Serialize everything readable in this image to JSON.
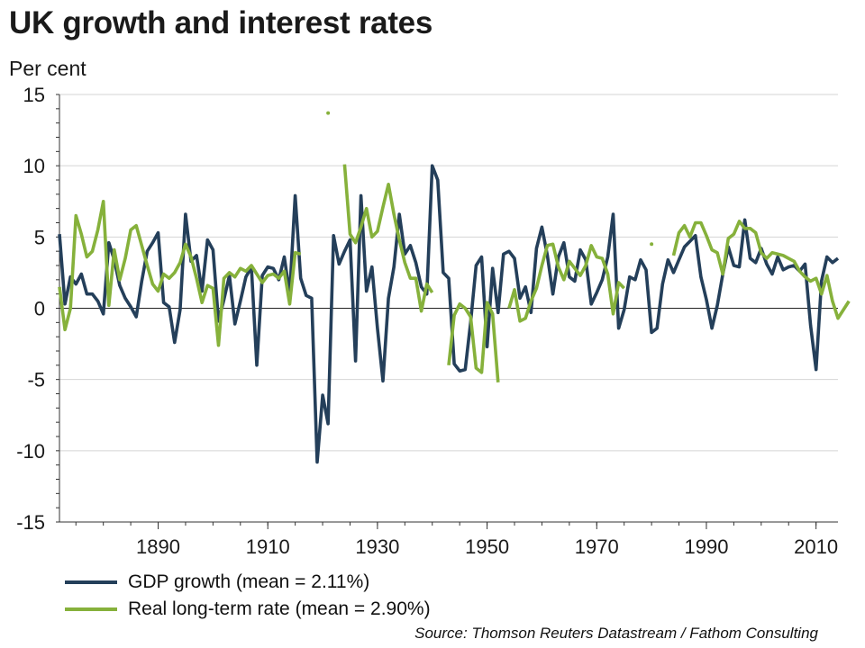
{
  "title": "UK growth and interest rates",
  "unit_label": "Per cent",
  "source": "Source: Thomson Reuters Datastream / Fathom Consulting",
  "colors": {
    "gdp": "#243f5a",
    "real_rate": "#86b13b",
    "grid": "#d4d4d4",
    "zero": "#222222"
  },
  "chart_data": {
    "type": "line",
    "title": "UK growth and interest rates",
    "ylabel": "Per cent",
    "xlabel": "",
    "xlim": [
      1872,
      2014
    ],
    "ylim": [
      -15,
      15
    ],
    "x_ticks": [
      1890,
      1910,
      1930,
      1950,
      1970,
      1990,
      2010
    ],
    "y_ticks": [
      -15,
      -10,
      -5,
      0,
      5,
      10,
      15
    ],
    "grid": true,
    "legend_position": "bottom-left",
    "series": [
      {
        "name": "GDP growth (mean = 2.11%)",
        "color": "#243f5a",
        "start_year": 1872,
        "values": [
          5.2,
          0.3,
          2.2,
          1.7,
          2.4,
          1.0,
          1.0,
          0.5,
          -0.4,
          4.6,
          3.4,
          1.6,
          0.7,
          0.1,
          -0.6,
          1.9,
          4.0,
          4.6,
          5.3,
          0.4,
          0.1,
          -2.4,
          -0.1,
          6.6,
          3.3,
          3.7,
          1.2,
          4.8,
          4.1,
          -0.9,
          0.6,
          2.3,
          -1.1,
          0.5,
          2.2,
          2.9,
          -4.0,
          2.3,
          2.9,
          2.8,
          2.0,
          3.6,
          1.0,
          7.9,
          2.1,
          0.9,
          0.7,
          -10.8,
          -6.1,
          -8.1,
          5.1,
          3.1,
          4.0,
          4.8,
          -3.7,
          7.9,
          1.2,
          2.9,
          -1.4,
          -5.1,
          0.7,
          2.9,
          6.6,
          3.8,
          4.4,
          3.2,
          1.5,
          1.0,
          10.0,
          9.0,
          2.5,
          2.1,
          -3.9,
          -4.4,
          -4.3,
          -1.0,
          3.0,
          3.6,
          -2.7,
          2.8,
          -0.3,
          3.8,
          4.0,
          3.5,
          0.7,
          1.5,
          -0.3,
          4.2,
          5.7,
          3.7,
          1.0,
          3.6,
          4.6,
          2.2,
          1.9,
          4.1,
          3.4,
          0.3,
          1.1,
          2.0,
          3.6,
          6.6,
          -1.4,
          -0.1,
          2.2,
          2.0,
          3.4,
          2.7,
          -1.7,
          -1.4,
          1.7,
          3.4,
          2.5,
          3.4,
          4.3,
          4.7,
          5.1,
          2.2,
          0.6,
          -1.4,
          0.2,
          2.4,
          4.3,
          3.0,
          2.9,
          6.2,
          3.5,
          3.2,
          4.2,
          3.1,
          2.4,
          3.6,
          2.7,
          2.9,
          3.0,
          2.6,
          3.1,
          -1.2,
          -4.3,
          1.9,
          3.6,
          3.2,
          3.5
        ]
      },
      {
        "name": "Real long-term rate (mean = 2.90%)",
        "color": "#86b13b",
        "start_year": 1872,
        "values": [
          1.5,
          -1.5,
          0.0,
          6.5,
          5.2,
          3.6,
          4.0,
          5.5,
          7.5,
          0.2,
          4.1,
          2.0,
          3.5,
          5.5,
          5.8,
          4.4,
          3.0,
          1.7,
          1.2,
          2.4,
          2.1,
          2.5,
          3.2,
          4.5,
          3.6,
          2.1,
          0.4,
          1.6,
          1.4,
          -2.6,
          2.1,
          2.5,
          2.2,
          2.8,
          2.6,
          3.0,
          2.4,
          1.8,
          2.3,
          2.4,
          2.1,
          2.6,
          0.3,
          3.9,
          3.8,
          null,
          null,
          null,
          null,
          13.7,
          null,
          null,
          10.1,
          5.2,
          4.6,
          5.7,
          7.0,
          5.0,
          5.4,
          7.1,
          8.7,
          6.6,
          4.8,
          3.2,
          2.1,
          2.1,
          -0.2,
          1.7,
          1.1,
          null,
          null,
          -4.0,
          -0.5,
          0.3,
          0.0,
          -0.6,
          -4.2,
          -4.5,
          0.4,
          -0.4,
          -5.2,
          null,
          0.0,
          1.3,
          -0.9,
          -0.7,
          0.5,
          1.4,
          3.0,
          4.4,
          4.5,
          2.9,
          2.0,
          3.3,
          2.8,
          2.3,
          3.0,
          4.4,
          3.6,
          3.5,
          2.4,
          -0.4,
          1.8,
          1.4,
          null,
          null,
          null,
          null,
          4.5,
          null,
          null,
          null,
          3.7,
          5.3,
          5.8,
          5.0,
          6.0,
          6.0,
          5.1,
          4.1,
          3.9,
          2.4,
          4.9,
          5.2,
          6.1,
          5.6,
          5.6,
          5.3,
          3.9,
          3.5,
          3.9,
          3.8,
          3.7,
          3.5,
          3.3,
          2.6,
          2.2,
          1.9,
          2.1,
          1.0,
          2.3,
          0.5,
          -0.7,
          -0.1,
          0.5
        ]
      }
    ]
  }
}
